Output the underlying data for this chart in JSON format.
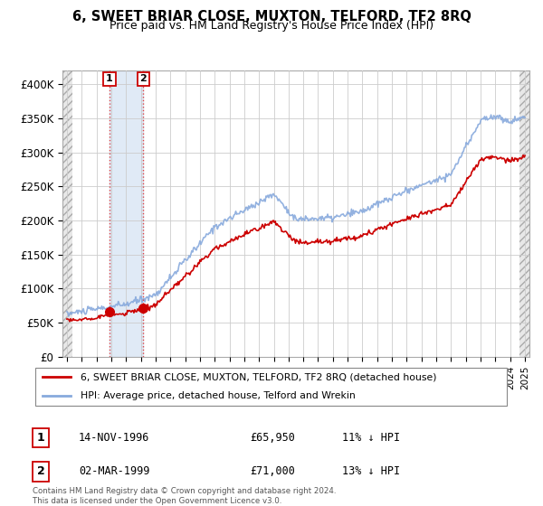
{
  "title": "6, SWEET BRIAR CLOSE, MUXTON, TELFORD, TF2 8RQ",
  "subtitle": "Price paid vs. HM Land Registry's House Price Index (HPI)",
  "legend_line1": "6, SWEET BRIAR CLOSE, MUXTON, TELFORD, TF2 8RQ (detached house)",
  "legend_line2": "HPI: Average price, detached house, Telford and Wrekin",
  "transaction1_date": "14-NOV-1996",
  "transaction1_price": "£65,950",
  "transaction1_hpi": "11% ↓ HPI",
  "transaction2_date": "02-MAR-1999",
  "transaction2_price": "£71,000",
  "transaction2_hpi": "13% ↓ HPI",
  "footer": "Contains HM Land Registry data © Crown copyright and database right 2024.\nThis data is licensed under the Open Government Licence v3.0.",
  "ylim": [
    0,
    420000
  ],
  "yticks": [
    0,
    50000,
    100000,
    150000,
    200000,
    250000,
    300000,
    350000,
    400000
  ],
  "ytick_labels": [
    "£0",
    "£50K",
    "£100K",
    "£150K",
    "£200K",
    "£250K",
    "£300K",
    "£350K",
    "£400K"
  ],
  "line_color_house": "#cc0000",
  "line_color_hpi": "#88aadd",
  "marker_color": "#cc0000",
  "vline_color": "#dd4444",
  "grid_color": "#cccccc",
  "transaction1_year": 1996.88,
  "transaction2_year": 1999.17,
  "xmin": 1994.0,
  "xmax": 2025.0,
  "price_t1": 65950,
  "price_t2": 71000
}
